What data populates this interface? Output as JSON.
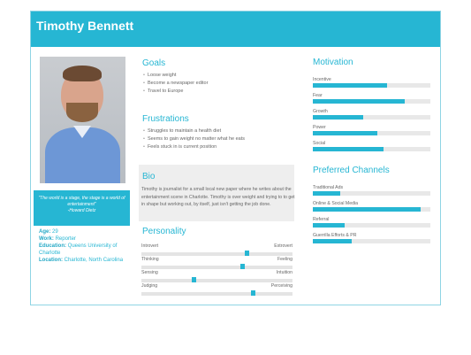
{
  "persona": {
    "name": "Timothy Bennett",
    "quote": "\"The world is a stage, the stage is a world of entertainment\"",
    "quote_author": "-Howard Dietz",
    "facts": [
      {
        "key": "Age:",
        "value": "29"
      },
      {
        "key": "Work:",
        "value": "Reporter"
      },
      {
        "key": "Education:",
        "value": "Queens University of Charlotte"
      },
      {
        "key": "Location:",
        "value": "Charlotte, North Carolina"
      }
    ]
  },
  "goals": {
    "title": "Goals",
    "items": [
      "Loose weight",
      "Become a newspaper editor",
      "Travel to Europe"
    ]
  },
  "frustrations": {
    "title": "Frustrations",
    "items": [
      "Struggles to maintain a health diet",
      "Seems to gain weight no matter what he eats",
      "Feels stuck in is current position"
    ]
  },
  "bio": {
    "title": "Bio",
    "text": "Timothy is journalist for a small local new paper where he writes about the entertainment scene in Charlotte. Timothy is over weight and trying to to get in shape but working out, by itself, just isn't getting the job done."
  },
  "personality": {
    "title": "Personality",
    "traits": [
      {
        "left": "Introvert",
        "right": "Extrovert",
        "value": 0.7
      },
      {
        "left": "Thinking",
        "right": "Feeling",
        "value": 0.67
      },
      {
        "left": "Sensing",
        "right": "Intuition",
        "value": 0.35
      },
      {
        "left": "Judging",
        "right": "Perceiving",
        "value": 0.74
      }
    ]
  },
  "motivation": {
    "title": "Motivation",
    "items": [
      {
        "label": "Incentive",
        "value": 0.63
      },
      {
        "label": "Fear",
        "value": 0.78
      },
      {
        "label": "Growth",
        "value": 0.43
      },
      {
        "label": "Power",
        "value": 0.55
      },
      {
        "label": "Social",
        "value": 0.6
      }
    ]
  },
  "channels": {
    "title": "Preferred Channels",
    "items": [
      {
        "label": "Traditional Ads",
        "value": 0.23
      },
      {
        "label": "Online & Social Media",
        "value": 0.92
      },
      {
        "label": "Referral",
        "value": 0.27
      },
      {
        "label": "Guerrilla Efforts & PR",
        "value": 0.33
      }
    ]
  },
  "colors": {
    "accent": "#26b6d3",
    "track": "#e8e8e8",
    "bio_bg": "#eeeeee"
  }
}
